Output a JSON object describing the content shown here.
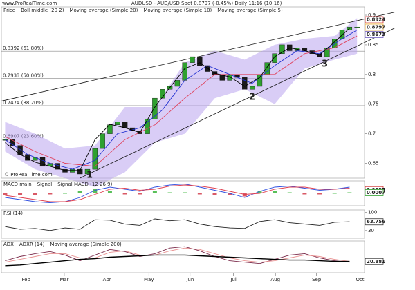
{
  "site": "www.ProRealTime.com",
  "watermark": "© ProRealTime.com",
  "chart_data": [
    {
      "type": "candlestick",
      "title": "AUDUSD - AUD/USD Spot  0.8797 (-0.45%)  Daily  11:16 (10:16)",
      "panel_label": "Price",
      "xlim": [
        -0.5,
        48
      ],
      "xticks": [
        {
          "value": 2.8,
          "label": "Feb"
        },
        {
          "value": 7.9,
          "label": "Mar"
        },
        {
          "value": 13.6,
          "label": "Apr"
        },
        {
          "value": 19.2,
          "label": "May"
        },
        {
          "value": 24.7,
          "label": "Jun"
        },
        {
          "value": 30.5,
          "label": "Jul"
        },
        {
          "value": 36.1,
          "label": "Aug"
        },
        {
          "value": 41.6,
          "label": "Sep"
        },
        {
          "value": 47.4,
          "label": "Oct"
        }
      ],
      "ylim": [
        0.625,
        0.914
      ],
      "yticks": [
        0.65,
        0.7,
        0.75,
        0.8,
        0.85,
        0.9
      ],
      "up_color": "#2fa02f",
      "down_color": "#1a1a1a",
      "close": [
        0.69,
        0.68,
        0.665,
        0.655,
        0.66,
        0.645,
        0.65,
        0.64,
        0.635,
        0.64,
        0.632,
        0.64,
        0.675,
        0.7,
        0.715,
        0.72,
        0.71,
        0.705,
        0.7,
        0.725,
        0.76,
        0.775,
        0.78,
        0.79,
        0.82,
        0.83,
        0.815,
        0.805,
        0.8,
        0.79,
        0.8,
        0.795,
        0.775,
        0.78,
        0.8,
        0.82,
        0.835,
        0.85,
        0.84,
        0.845,
        0.84,
        0.835,
        0.83,
        0.845,
        0.86,
        0.875,
        0.88,
        0.88
      ],
      "band": {
        "name": "Boll middle (20 2)",
        "color": "#b9a4ee",
        "x": [
          0,
          4,
          8,
          12,
          16,
          20,
          24,
          28,
          32,
          36,
          40,
          44,
          47
        ],
        "upper": [
          0.72,
          0.7,
          0.675,
          0.68,
          0.745,
          0.745,
          0.82,
          0.84,
          0.825,
          0.85,
          0.86,
          0.865,
          0.895
        ],
        "lower": [
          0.67,
          0.64,
          0.625,
          0.61,
          0.635,
          0.685,
          0.7,
          0.76,
          0.775,
          0.75,
          0.81,
          0.825,
          0.835
        ]
      },
      "series": [
        {
          "name": "Moving average (Simple 20)",
          "color": "#e0405a",
          "x": [
            0,
            4,
            8,
            12,
            16,
            20,
            24,
            28,
            32,
            36,
            40,
            44,
            47
          ],
          "values": [
            0.695,
            0.67,
            0.65,
            0.645,
            0.69,
            0.715,
            0.76,
            0.8,
            0.8,
            0.8,
            0.835,
            0.845,
            0.865
          ]
        },
        {
          "name": "Moving average (Simple 10)",
          "color": "#2030d0",
          "x": [
            0,
            3,
            6,
            9,
            12,
            15,
            18,
            21,
            24,
            27,
            30,
            33,
            36,
            39,
            42,
            45,
            47
          ],
          "values": [
            0.69,
            0.665,
            0.65,
            0.64,
            0.655,
            0.7,
            0.71,
            0.74,
            0.79,
            0.815,
            0.8,
            0.785,
            0.815,
            0.84,
            0.835,
            0.86,
            0.875
          ]
        },
        {
          "name": "Moving average (Simple 5)",
          "color": "#000000",
          "x": [
            0,
            2,
            4,
            6,
            8,
            10,
            12,
            14,
            16,
            18,
            20,
            22,
            24,
            26,
            28,
            30,
            32,
            34,
            36,
            38,
            40,
            42,
            44,
            46
          ],
          "values": [
            0.685,
            0.665,
            0.652,
            0.645,
            0.638,
            0.638,
            0.69,
            0.716,
            0.71,
            0.702,
            0.745,
            0.778,
            0.81,
            0.82,
            0.802,
            0.796,
            0.78,
            0.795,
            0.83,
            0.845,
            0.84,
            0.833,
            0.855,
            0.878
          ]
        }
      ],
      "levels": [
        {
          "value": 0.8392,
          "label": "0.8392 (61.80%)"
        },
        {
          "value": 0.7933,
          "label": "0.7933 (50.00%)"
        },
        {
          "value": 0.7474,
          "label": "0.7474 (38.20%)"
        },
        {
          "value": 0.6907,
          "label": "0.6907 (23.60%)"
        }
      ],
      "trendlines": [
        {
          "x": [
            -0.5,
            52
          ],
          "y": [
            0.755,
            0.905
          ]
        },
        {
          "x": [
            10,
            52
          ],
          "y": [
            0.625,
            0.878
          ]
        }
      ],
      "tags": [
        {
          "value": 0.8924,
          "color": "#d03030"
        },
        {
          "value": 0.8797,
          "color": "#e8a020"
        },
        {
          "value": 0.8673,
          "color": "#7060c0"
        }
      ],
      "annotations": [
        "1",
        "2",
        "3"
      ]
    },
    {
      "type": "line",
      "ylim": [
        -0.012,
        0.012
      ],
      "x": [
        0,
        2,
        4,
        6,
        8,
        10,
        12,
        14,
        16,
        18,
        20,
        22,
        24,
        26,
        28,
        30,
        32,
        34,
        36,
        38,
        40,
        42,
        44,
        46
      ],
      "histogram": {
        "name": "Signal MACD (12 26 9)",
        "up_color": "#30b030",
        "down_color": "#d03040",
        "values": [
          -0.002,
          -0.002,
          -0.002,
          -0.001,
          0.0,
          0.002,
          0.004,
          0.002,
          -0.001,
          -0.001,
          0.002,
          0.001,
          0.001,
          -0.001,
          -0.002,
          -0.002,
          -0.003,
          0.002,
          0.002,
          0.001,
          -0.001,
          -0.001,
          0.0,
          0.001
        ]
      },
      "series": [
        {
          "name": "MACD main",
          "color": "#3050e0",
          "values": [
            -0.004,
            -0.006,
            -0.008,
            -0.009,
            -0.008,
            -0.004,
            0.003,
            0.006,
            0.004,
            0.002,
            0.006,
            0.008,
            0.009,
            0.006,
            0.003,
            0.0,
            -0.004,
            0.002,
            0.006,
            0.007,
            0.005,
            0.003,
            0.004,
            0.006
          ]
        },
        {
          "name": "Signal",
          "color": "#e04050",
          "values": [
            -0.002,
            -0.004,
            -0.006,
            -0.008,
            -0.008,
            -0.006,
            -0.001,
            0.004,
            0.005,
            0.003,
            0.004,
            0.007,
            0.008,
            0.007,
            0.005,
            0.002,
            -0.001,
            0.0,
            0.004,
            0.006,
            0.006,
            0.004,
            0.004,
            0.005
          ]
        }
      ],
      "tags": [
        {
          "value": 0.0035,
          "color": "#d03030"
        },
        {
          "value": 0.0007,
          "color": "#30a030"
        }
      ]
    },
    {
      "type": "line",
      "ylim": [
        0,
        110
      ],
      "yticks": [
        30,
        100
      ],
      "x": [
        0,
        2,
        4,
        6,
        8,
        10,
        12,
        14,
        16,
        18,
        20,
        22,
        24,
        26,
        28,
        30,
        32,
        34,
        36,
        38,
        40,
        42,
        44,
        46
      ],
      "series": [
        {
          "name": "RSI (14)",
          "color": "#222222",
          "values": [
            45,
            35,
            38,
            30,
            40,
            35,
            72,
            70,
            55,
            50,
            75,
            68,
            72,
            55,
            45,
            40,
            38,
            65,
            72,
            60,
            55,
            50,
            62,
            64
          ]
        }
      ],
      "tags": [
        {
          "value": 63.756,
          "color": "#333333"
        }
      ]
    },
    {
      "type": "line",
      "ylim": [
        5,
        50
      ],
      "x": [
        0,
        2,
        4,
        6,
        8,
        10,
        12,
        14,
        16,
        18,
        20,
        22,
        24,
        26,
        28,
        30,
        32,
        34,
        36,
        38,
        40,
        42,
        44,
        46
      ],
      "series": [
        {
          "name": "ADX",
          "color": "#7a2a4a",
          "values": [
            22,
            28,
            32,
            35,
            30,
            22,
            30,
            38,
            35,
            28,
            32,
            40,
            42,
            36,
            28,
            22,
            20,
            18,
            24,
            30,
            32,
            26,
            22,
            20
          ]
        },
        {
          "name": "ADXR (14)",
          "color": "#e89090",
          "values": [
            20,
            24,
            28,
            32,
            32,
            26,
            26,
            34,
            36,
            30,
            30,
            36,
            40,
            38,
            32,
            26,
            22,
            20,
            22,
            26,
            30,
            28,
            24,
            21
          ]
        },
        {
          "name": "Moving average (Simple 200)",
          "color": "#000000",
          "values": [
            15,
            16,
            18,
            20,
            22,
            24,
            25,
            27,
            28,
            29,
            30,
            30,
            30,
            29,
            28,
            27,
            26,
            25,
            24,
            23,
            23,
            22,
            21,
            21
          ]
        }
      ],
      "tags": [
        {
          "value": 20.881,
          "color": "#333333"
        }
      ]
    }
  ]
}
